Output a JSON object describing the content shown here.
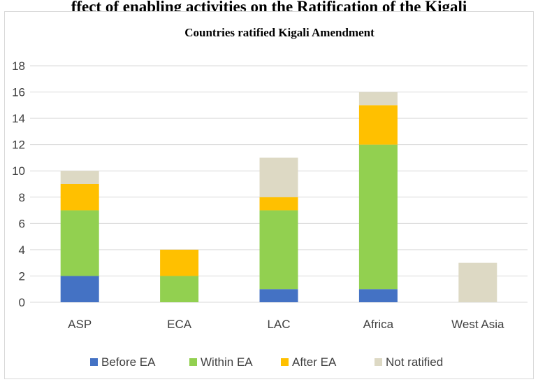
{
  "page": {
    "heading": "ffect of enabling activities on the Ratification of the Kigali"
  },
  "chart_data": {
    "type": "bar",
    "stacked": true,
    "title": "Countries ratified Kigali Amendment",
    "xlabel": "",
    "ylabel": "",
    "categories": [
      "ASP",
      "ECA",
      "LAC",
      "Africa",
      "West Asia"
    ],
    "series": [
      {
        "name": "Before EA",
        "values": [
          2,
          0,
          1,
          1,
          0
        ],
        "color": "#4472c4"
      },
      {
        "name": "Within EA",
        "values": [
          5,
          2,
          6,
          11,
          0
        ],
        "color": "#92d050"
      },
      {
        "name": "After EA",
        "values": [
          2,
          2,
          1,
          3,
          0
        ],
        "color": "#ffc000"
      },
      {
        "name": "Not ratified",
        "values": [
          1,
          0,
          3,
          1,
          3
        ],
        "color": "#ddd9c4"
      }
    ],
    "ylim": [
      0,
      18
    ],
    "yticks": [
      0,
      2,
      4,
      6,
      8,
      10,
      12,
      14,
      16,
      18
    ],
    "grid": true,
    "legend_position": "bottom"
  }
}
